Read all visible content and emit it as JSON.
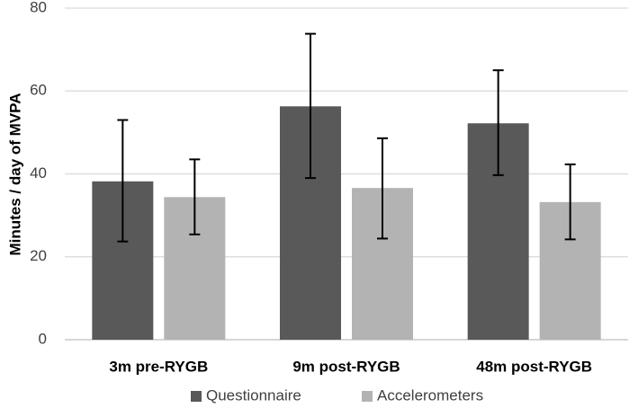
{
  "chart_data": {
    "type": "bar",
    "categories": [
      "3m pre-RYGB",
      "9m post-RYGB",
      "48m post-RYGB"
    ],
    "series": [
      {
        "name": "Questionnaire",
        "color": "#595959",
        "values": [
          38.2,
          56.3,
          52.2
        ],
        "error_low": [
          23.7,
          39.0,
          39.7
        ],
        "error_high": [
          53.0,
          73.8,
          65.0
        ]
      },
      {
        "name": "Accelerometers",
        "color": "#b3b3b3",
        "values": [
          34.4,
          36.6,
          33.2
        ],
        "error_low": [
          25.4,
          24.4,
          24.2
        ],
        "error_high": [
          43.5,
          48.6,
          42.3
        ]
      }
    ],
    "ylabel": "Minutes / day of MVPA",
    "ylim": [
      0,
      80
    ],
    "yticks": [
      0,
      20,
      40,
      60,
      80
    ],
    "grid": true,
    "legend_position": "bottom"
  }
}
